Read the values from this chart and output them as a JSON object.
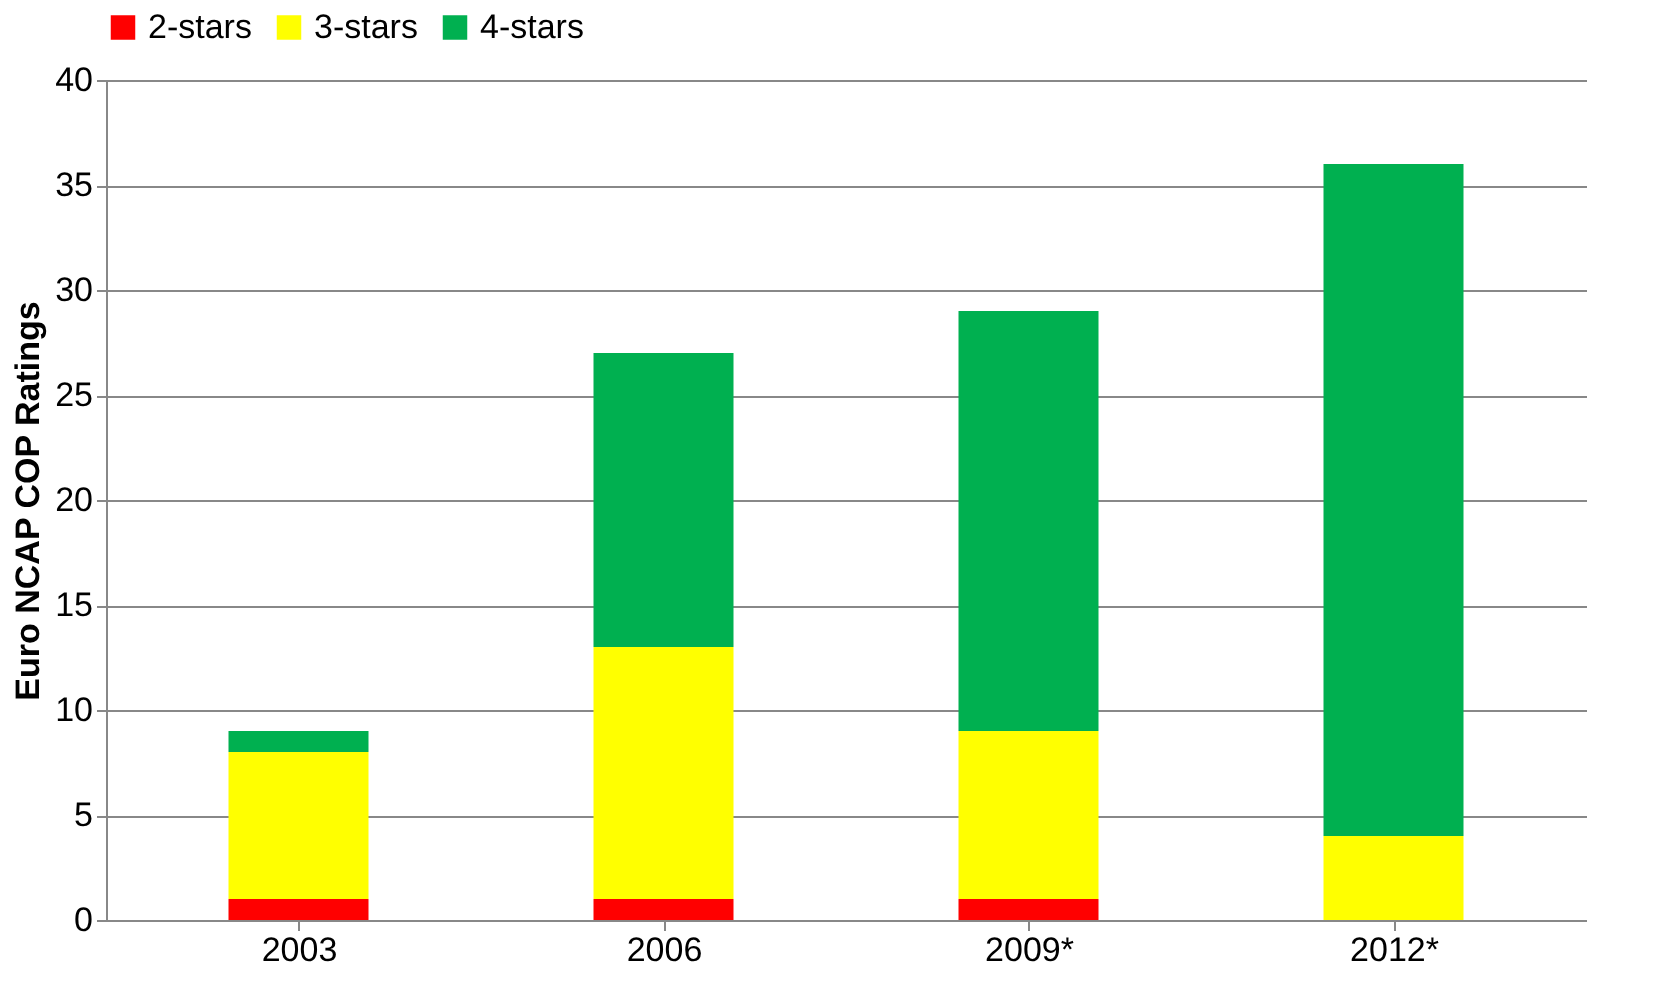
{
  "chart_data": {
    "type": "bar",
    "stacked": true,
    "ylabel": "Euro NCAP COP Ratings",
    "categories": [
      "2003",
      "2006",
      "2009*",
      "2012*"
    ],
    "series": [
      {
        "name": "2-stars",
        "color": "#ff0000",
        "values": [
          1,
          1,
          1,
          0
        ]
      },
      {
        "name": "3-stars",
        "color": "#ffff00",
        "values": [
          7,
          12,
          8,
          4
        ]
      },
      {
        "name": "4-stars",
        "color": "#00b050",
        "values": [
          1,
          14,
          20,
          32
        ]
      }
    ],
    "ylim": [
      0,
      40
    ],
    "yticks": [
      0,
      5,
      10,
      15,
      20,
      25,
      30,
      35,
      40
    ],
    "grid": "y",
    "legend": "top"
  }
}
